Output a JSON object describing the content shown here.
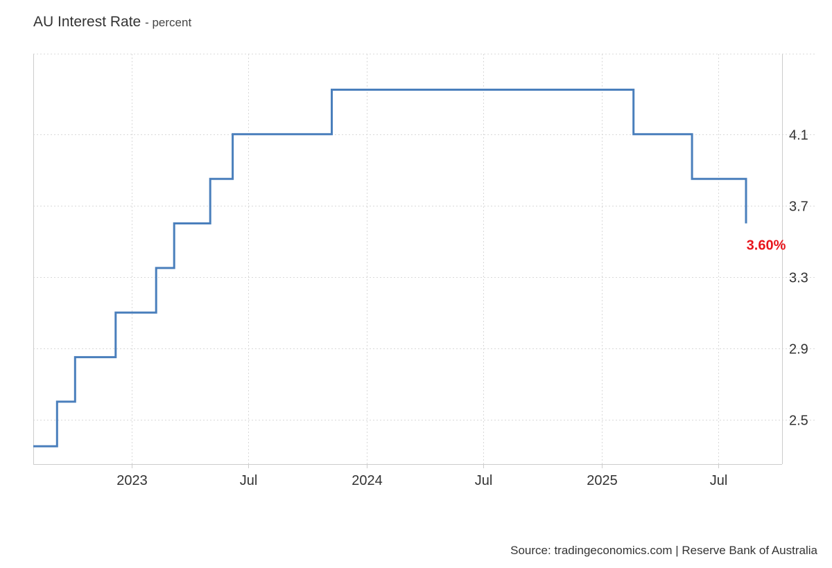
{
  "header": {
    "title": "AU Interest Rate",
    "subtitle": "- percent"
  },
  "footer": {
    "source": "Source: tradingeconomics.com | Reserve Bank of Australia"
  },
  "colors": {
    "line": "#4a7fbc",
    "last_label": "#e8151c",
    "grid": "#d8d8d8",
    "axis": "#cccccc"
  },
  "chart_data": {
    "type": "line",
    "title": "AU Interest Rate",
    "subtitle": "percent",
    "xlabel": "",
    "ylabel": "",
    "step": true,
    "grid": true,
    "y_axis_side": "right",
    "ylim": [
      2.25,
      4.55
    ],
    "xlim": [
      "2022-08-01",
      "2025-10-08"
    ],
    "y_ticks": [
      2.5,
      2.9,
      3.3,
      3.7,
      4.1
    ],
    "y_tick_labels": [
      "2.5",
      "2.9",
      "3.3",
      "3.7",
      "4.1"
    ],
    "x_ticks": [
      "2023-01-01",
      "2023-07-01",
      "2024-01-01",
      "2024-07-01",
      "2025-01-01",
      "2025-07-01"
    ],
    "x_tick_labels": [
      "2023",
      "Jul",
      "2024",
      "Jul",
      "2025",
      "Jul"
    ],
    "series": [
      {
        "points": [
          [
            "2022-08-01",
            2.35
          ],
          [
            "2022-09-07",
            2.6
          ],
          [
            "2022-10-05",
            2.85
          ],
          [
            "2022-11-02",
            2.85
          ],
          [
            "2022-12-07",
            3.1
          ],
          [
            "2023-02-08",
            3.35
          ],
          [
            "2023-03-08",
            3.6
          ],
          [
            "2023-05-03",
            3.85
          ],
          [
            "2023-06-07",
            4.1
          ],
          [
            "2023-11-08",
            4.35
          ],
          [
            "2025-02-19",
            4.1
          ],
          [
            "2025-05-21",
            3.85
          ],
          [
            "2025-08-13",
            3.6
          ]
        ]
      }
    ],
    "last_value": 3.6,
    "last_value_label": "3.60%"
  }
}
